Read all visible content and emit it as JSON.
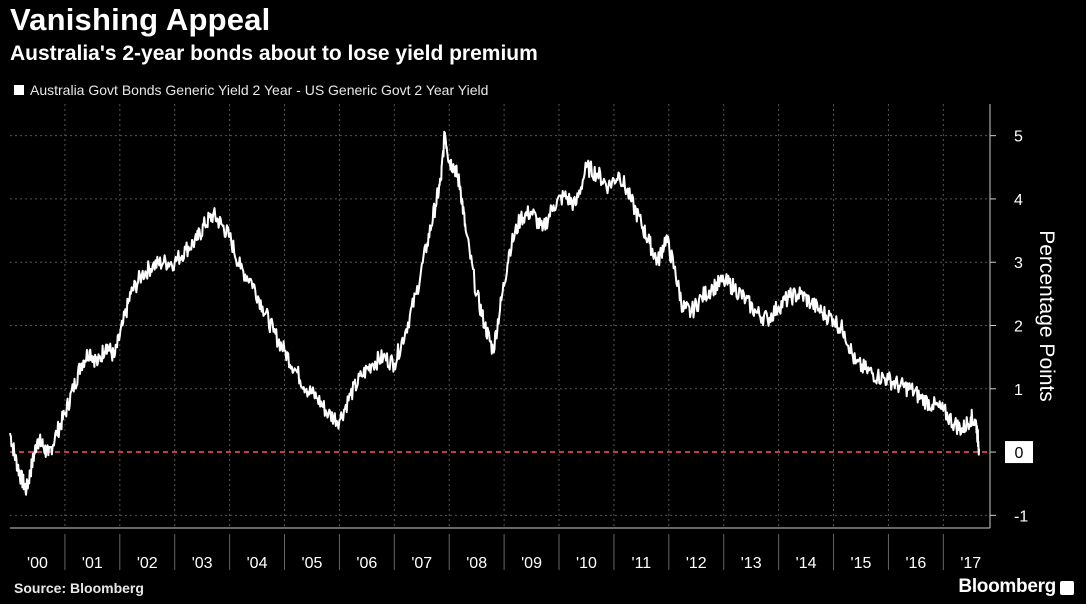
{
  "chart_data": {
    "type": "line",
    "title": "Vanishing Appeal",
    "subtitle": "Australia's 2-year bonds about to lose yield premium",
    "ylabel": "Percentage Points",
    "ylim": [
      -1.2,
      5.5
    ],
    "yticks": [
      -1,
      0,
      1,
      2,
      3,
      4,
      5
    ],
    "ytick_labels": [
      "-1",
      "0",
      "1",
      "2",
      "3",
      "4",
      "5"
    ],
    "x_labels": [
      "'00",
      "'01",
      "'02",
      "'03",
      "'04",
      "'05",
      "'06",
      "'07",
      "'08",
      "'09",
      "'10",
      "'11",
      "'12",
      "'13",
      "'14",
      "'15",
      "'16",
      "'17"
    ],
    "grid": true,
    "reference_line": {
      "y": 0,
      "color": "#ff4d6a"
    },
    "series": [
      {
        "name": "Australia Govt Bonds Generic Yield 2 Year - US Generic Govt 2 Year Yield",
        "color": "#ffffff",
        "x": [
          2000.0,
          2000.1,
          2000.2,
          2000.3,
          2000.4,
          2000.5,
          2000.6,
          2000.7,
          2000.85,
          2001.0,
          2001.15,
          2001.3,
          2001.45,
          2001.6,
          2001.75,
          2001.9,
          2002.05,
          2002.2,
          2002.4,
          2002.6,
          2002.8,
          2003.0,
          2003.2,
          2003.4,
          2003.55,
          2003.7,
          2003.85,
          2004.0,
          2004.2,
          2004.4,
          2004.6,
          2004.8,
          2005.0,
          2005.2,
          2005.4,
          2005.6,
          2005.8,
          2006.0,
          2006.2,
          2006.4,
          2006.6,
          2006.8,
          2007.0,
          2007.2,
          2007.4,
          2007.6,
          2007.75,
          2007.85,
          2007.92,
          2008.0,
          2008.1,
          2008.2,
          2008.3,
          2008.5,
          2008.65,
          2008.8,
          2008.95,
          2009.1,
          2009.3,
          2009.5,
          2009.7,
          2009.9,
          2010.1,
          2010.3,
          2010.5,
          2010.7,
          2010.9,
          2011.1,
          2011.3,
          2011.5,
          2011.65,
          2011.8,
          2011.95,
          2012.1,
          2012.25,
          2012.4,
          2012.6,
          2012.8,
          2013.0,
          2013.2,
          2013.4,
          2013.6,
          2013.8,
          2014.0,
          2014.2,
          2014.4,
          2014.6,
          2014.8,
          2015.0,
          2015.2,
          2015.4,
          2015.6,
          2015.8,
          2016.0,
          2016.2,
          2016.4,
          2016.6,
          2016.8,
          2017.0,
          2017.2,
          2017.35,
          2017.5,
          2017.6,
          2017.65
        ],
        "y": [
          0.3,
          -0.1,
          -0.4,
          -0.6,
          -0.2,
          0.2,
          0.1,
          -0.05,
          0.3,
          0.6,
          1.0,
          1.4,
          1.6,
          1.4,
          1.7,
          1.5,
          2.0,
          2.5,
          2.8,
          2.95,
          3.0,
          3.0,
          3.2,
          3.35,
          3.6,
          3.75,
          3.6,
          3.4,
          2.9,
          2.7,
          2.3,
          1.9,
          1.6,
          1.3,
          1.0,
          0.85,
          0.6,
          0.5,
          0.9,
          1.2,
          1.4,
          1.5,
          1.4,
          1.9,
          2.5,
          3.3,
          3.9,
          4.3,
          5.05,
          4.6,
          4.5,
          4.2,
          3.5,
          2.5,
          2.0,
          1.6,
          2.4,
          3.2,
          3.7,
          3.8,
          3.5,
          3.9,
          4.05,
          3.9,
          4.5,
          4.4,
          4.2,
          4.4,
          4.0,
          3.6,
          3.3,
          3.0,
          3.4,
          2.9,
          2.3,
          2.2,
          2.45,
          2.6,
          2.7,
          2.6,
          2.4,
          2.2,
          2.1,
          2.3,
          2.45,
          2.5,
          2.35,
          2.2,
          2.1,
          1.9,
          1.4,
          1.3,
          1.2,
          1.15,
          1.05,
          1.0,
          0.85,
          0.75,
          0.65,
          0.45,
          0.35,
          0.55,
          0.45,
          0.05
        ]
      }
    ]
  },
  "footer": {
    "source": "Source: Bloomberg",
    "brand": "Bloomberg"
  }
}
